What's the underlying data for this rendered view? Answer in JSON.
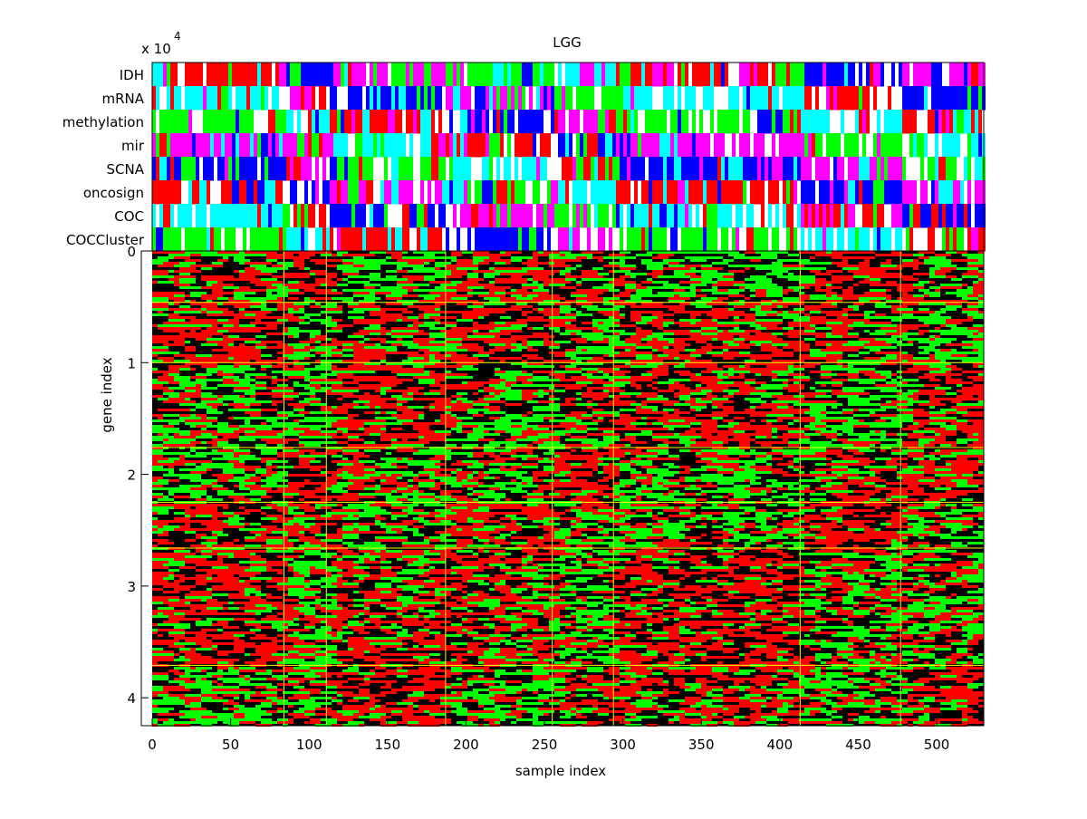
{
  "chart_data": {
    "type": "heatmap",
    "title": "LGG",
    "xlabel": "sample index",
    "ylabel": "gene index",
    "y_exponent_label": "x 10",
    "y_exponent_power": "4",
    "xlim": [
      0,
      530
    ],
    "ylim": [
      0,
      42500
    ],
    "x_ticks": [
      0,
      50,
      100,
      150,
      200,
      250,
      300,
      350,
      400,
      450,
      500
    ],
    "x_tick_labels": [
      "0",
      "50",
      "100",
      "150",
      "200",
      "250",
      "300",
      "350",
      "400",
      "450",
      "500"
    ],
    "y_ticks": [
      0,
      10000,
      20000,
      30000,
      40000
    ],
    "y_tick_labels": [
      "0",
      "1",
      "2",
      "3",
      "4"
    ],
    "grid": false,
    "annotation_tracks": [
      {
        "name": "IDH"
      },
      {
        "name": "mRNA"
      },
      {
        "name": "methylation"
      },
      {
        "name": "mir"
      },
      {
        "name": "SCNA"
      },
      {
        "name": "oncosign"
      },
      {
        "name": "COC"
      },
      {
        "name": "COCCluster"
      }
    ],
    "cluster_boundaries_x": [
      84,
      111,
      187,
      255,
      294,
      413,
      477
    ],
    "cluster_boundaries_y": [
      4600,
      10000,
      17600,
      22500,
      26600,
      37100
    ],
    "colors": {
      "heatmap_low": "#00ff00",
      "heatmap_mid": "#000000",
      "heatmap_high": "#ff0000",
      "separator": "#ffff00",
      "track_palette": [
        "#ff0000",
        "#00ff00",
        "#0000ff",
        "#00ffff",
        "#ff00ff",
        "#ffffff"
      ]
    }
  }
}
